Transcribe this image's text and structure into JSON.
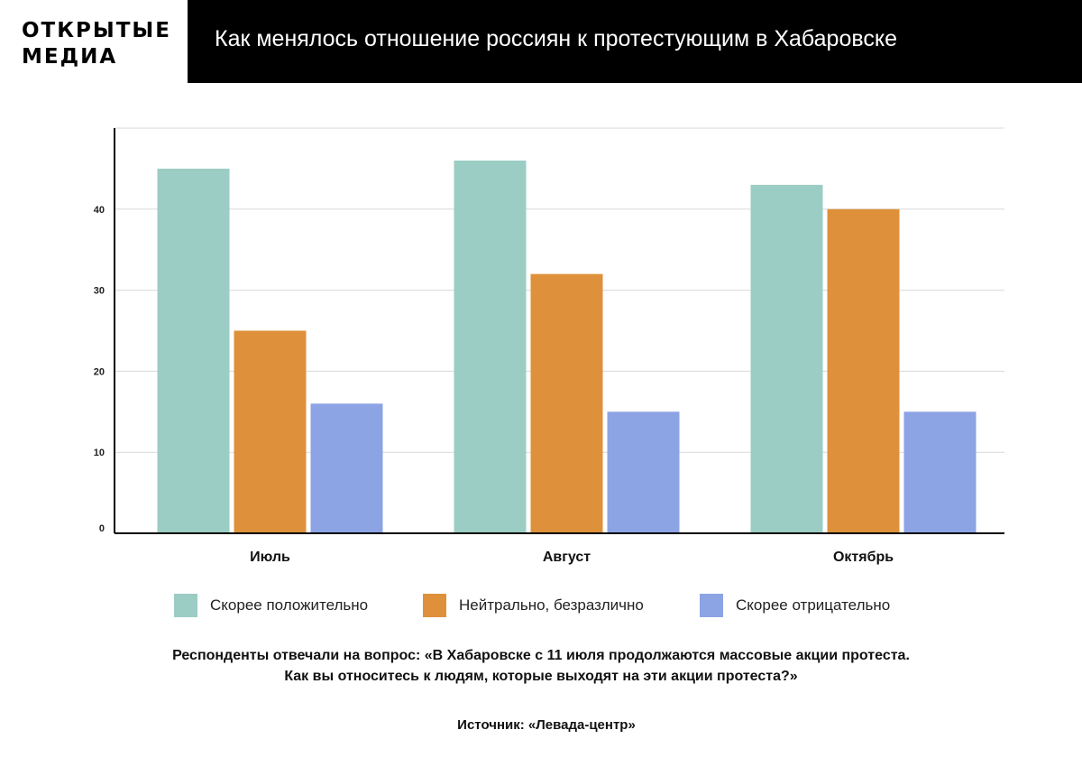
{
  "brand": {
    "line1": "ОТКРЫТЫЕ",
    "line2": "МЕДИА"
  },
  "header": {
    "title": "Как менялось отношение россиян к протестующим в Хабаровске"
  },
  "chart_data": {
    "type": "bar",
    "title": "Как менялось отношение россиян к протестующим в Хабаровске",
    "xlabel": "",
    "ylabel": "",
    "categories": [
      "Июль",
      "Август",
      "Октябрь"
    ],
    "series": [
      {
        "name": "Скорее положительно",
        "color": "#9bcdc4",
        "values": [
          45,
          46,
          43
        ]
      },
      {
        "name": "Нейтрально, безразлично",
        "color": "#df903a",
        "values": [
          25,
          32,
          40
        ]
      },
      {
        "name": "Скорее отрицательно",
        "color": "#8ca3e4",
        "values": [
          16,
          15,
          15
        ]
      }
    ],
    "yticks": [
      0,
      10,
      20,
      30,
      40
    ],
    "ylim": [
      0,
      50
    ],
    "grid": true,
    "legend": "bottom"
  },
  "footer": {
    "note_line1": "Респонденты отвечали на вопрос: «В Хабаровске с 11 июля продолжаются массовые акции протеста.",
    "note_line2": "Как вы относитесь к людям, которые выходят на эти акции протеста?»",
    "source": "Источник: «Левада-центр»"
  }
}
